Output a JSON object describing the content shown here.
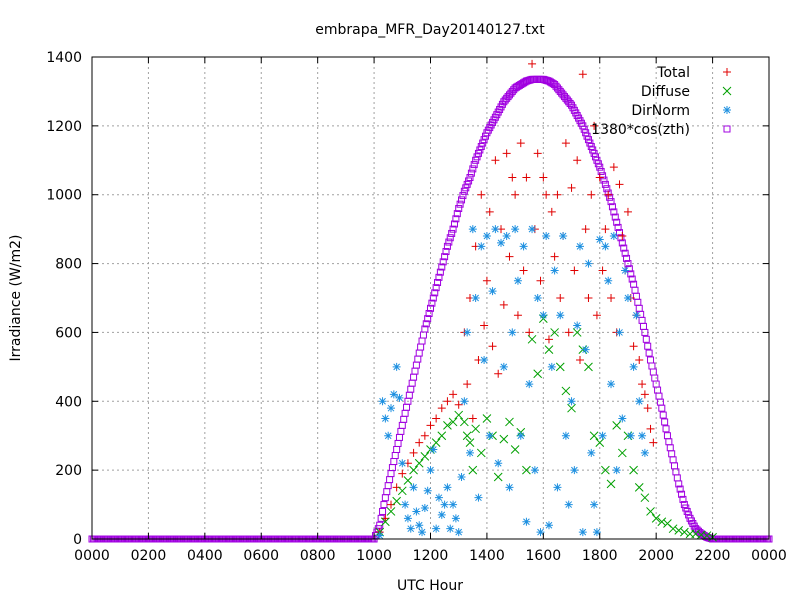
{
  "chart_data": {
    "type": "scatter",
    "title": "embrapa_MFR_Day20140127.txt",
    "xlabel": "UTC Hour",
    "ylabel": "Irradiance (W/m2)",
    "xlim": [
      0,
      24
    ],
    "ylim": [
      0,
      1400
    ],
    "x_ticks": [
      0,
      2,
      4,
      6,
      8,
      10,
      12,
      14,
      16,
      18,
      20,
      22,
      24
    ],
    "x_tick_labels": [
      "0000",
      "0200",
      "0400",
      "0600",
      "0800",
      "1000",
      "1200",
      "1400",
      "1600",
      "1800",
      "2000",
      "2200",
      "0000"
    ],
    "y_ticks": [
      0,
      200,
      400,
      600,
      800,
      1000,
      1200,
      1400
    ],
    "y_tick_labels": [
      "0",
      "200",
      "400",
      "600",
      "800",
      "1000",
      "1200",
      "1400"
    ],
    "grid": true,
    "legend_position": "top-right",
    "series": [
      {
        "name": "Total",
        "marker": "plus",
        "color": "#e00000",
        "x": [
          10.2,
          10.4,
          10.6,
          10.8,
          11.0,
          11.2,
          11.4,
          11.6,
          11.8,
          12.0,
          12.2,
          12.4,
          12.6,
          12.8,
          13.0,
          13.2,
          13.3,
          13.4,
          13.5,
          13.6,
          13.7,
          13.8,
          13.9,
          14.0,
          14.1,
          14.2,
          14.3,
          14.4,
          14.5,
          14.6,
          14.7,
          14.8,
          14.9,
          15.0,
          15.1,
          15.2,
          15.3,
          15.4,
          15.5,
          15.6,
          15.7,
          15.8,
          15.9,
          16.0,
          16.1,
          16.2,
          16.3,
          16.4,
          16.5,
          16.6,
          16.7,
          16.8,
          16.9,
          17.0,
          17.1,
          17.2,
          17.3,
          17.4,
          17.5,
          17.6,
          17.7,
          17.8,
          17.9,
          18.0,
          18.1,
          18.2,
          18.3,
          18.4,
          18.5,
          18.6,
          18.7,
          18.8,
          18.9,
          19.0,
          19.1,
          19.2,
          19.3,
          19.4,
          19.5,
          19.6,
          19.7,
          19.8,
          19.9
        ],
        "y": [
          20,
          60,
          100,
          150,
          190,
          220,
          250,
          280,
          300,
          330,
          350,
          380,
          400,
          420,
          390,
          600,
          450,
          700,
          350,
          850,
          520,
          1000,
          620,
          750,
          950,
          560,
          1100,
          480,
          900,
          680,
          1120,
          820,
          1050,
          1000,
          650,
          1150,
          780,
          1050,
          600,
          1380,
          900,
          1120,
          750,
          1050,
          1000,
          580,
          950,
          820,
          1000,
          700,
          880,
          1150,
          600,
          1020,
          780,
          1100,
          520,
          1350,
          900,
          700,
          1000,
          1200,
          650,
          1050,
          780,
          900,
          1000,
          700,
          1080,
          600,
          1030,
          880,
          780,
          950,
          700,
          560,
          650,
          520,
          450,
          420,
          380,
          320,
          280
        ]
      },
      {
        "name": "Diffuse",
        "marker": "cross",
        "color": "#00a000",
        "x": [
          10.2,
          10.4,
          10.6,
          10.8,
          11.0,
          11.2,
          11.4,
          11.6,
          11.8,
          12.0,
          12.2,
          12.4,
          12.6,
          12.8,
          13.0,
          13.2,
          13.3,
          13.4,
          13.5,
          13.6,
          13.8,
          14.0,
          14.2,
          14.4,
          14.6,
          14.8,
          15.0,
          15.2,
          15.4,
          15.6,
          15.8,
          16.0,
          16.2,
          16.4,
          16.6,
          16.8,
          17.0,
          17.2,
          17.4,
          17.6,
          17.8,
          18.0,
          18.2,
          18.4,
          18.6,
          18.8,
          19.0,
          19.2,
          19.4,
          19.6,
          19.8,
          20.0,
          20.2,
          20.4,
          20.6,
          20.8,
          21.0,
          21.2,
          21.4,
          21.6,
          21.8,
          22.0
        ],
        "y": [
          20,
          50,
          80,
          110,
          140,
          170,
          200,
          220,
          240,
          260,
          280,
          300,
          330,
          340,
          360,
          340,
          300,
          280,
          200,
          320,
          250,
          350,
          300,
          180,
          290,
          340,
          260,
          310,
          200,
          580,
          480,
          640,
          550,
          600,
          500,
          430,
          380,
          600,
          550,
          500,
          300,
          280,
          200,
          160,
          330,
          250,
          300,
          200,
          150,
          120,
          80,
          60,
          50,
          45,
          30,
          25,
          20,
          15,
          15,
          12,
          10,
          5
        ]
      },
      {
        "name": "DirNorm",
        "marker": "star",
        "color": "#1e90e0",
        "x": [
          10.2,
          10.3,
          10.4,
          10.5,
          10.6,
          10.7,
          10.8,
          10.9,
          11.0,
          11.1,
          11.2,
          11.3,
          11.4,
          11.5,
          11.6,
          11.7,
          11.8,
          11.9,
          12.0,
          12.1,
          12.2,
          12.3,
          12.4,
          12.5,
          12.6,
          12.7,
          12.8,
          12.9,
          13.0,
          13.1,
          13.2,
          13.3,
          13.4,
          13.5,
          13.6,
          13.7,
          13.8,
          13.9,
          14.0,
          14.1,
          14.2,
          14.3,
          14.4,
          14.5,
          14.6,
          14.7,
          14.8,
          14.9,
          15.0,
          15.1,
          15.2,
          15.3,
          15.4,
          15.5,
          15.6,
          15.7,
          15.8,
          15.9,
          16.0,
          16.1,
          16.2,
          16.3,
          16.4,
          16.5,
          16.6,
          16.7,
          16.8,
          16.9,
          17.0,
          17.1,
          17.2,
          17.3,
          17.4,
          17.5,
          17.6,
          17.7,
          17.8,
          17.9,
          18.0,
          18.1,
          18.2,
          18.3,
          18.4,
          18.5,
          18.6,
          18.7,
          18.8,
          18.9,
          19.0,
          19.1,
          19.2,
          19.3,
          19.4,
          19.5,
          19.6
        ],
        "y": [
          10,
          400,
          350,
          300,
          380,
          420,
          500,
          410,
          220,
          100,
          60,
          30,
          150,
          80,
          40,
          20,
          90,
          140,
          200,
          260,
          30,
          120,
          70,
          100,
          150,
          30,
          100,
          60,
          20,
          180,
          400,
          600,
          250,
          900,
          700,
          120,
          850,
          520,
          880,
          300,
          720,
          900,
          220,
          860,
          500,
          880,
          150,
          600,
          900,
          750,
          300,
          850,
          50,
          450,
          900,
          200,
          700,
          20,
          650,
          880,
          40,
          500,
          780,
          150,
          650,
          880,
          300,
          100,
          400,
          200,
          620,
          850,
          20,
          550,
          800,
          250,
          100,
          20,
          870,
          300,
          850,
          750,
          450,
          880,
          200,
          600,
          350,
          780,
          700,
          300,
          500,
          650,
          400,
          300,
          250
        ]
      },
      {
        "name": "1380*cos(zth)",
        "marker": "square",
        "color": "#a000e0",
        "x": [
          0,
          10.0,
          10.2,
          10.4,
          10.6,
          10.8,
          11.0,
          11.2,
          11.4,
          11.6,
          11.8,
          12.0,
          12.2,
          12.4,
          12.6,
          12.8,
          13.0,
          13.2,
          13.4,
          13.6,
          13.8,
          14.0,
          14.2,
          14.4,
          14.6,
          14.8,
          15.0,
          15.2,
          15.4,
          15.6,
          15.8,
          16.0,
          16.2,
          16.4,
          16.6,
          16.8,
          17.0,
          17.2,
          17.4,
          17.6,
          17.8,
          18.0,
          18.2,
          18.4,
          18.6,
          18.8,
          19.0,
          19.2,
          19.4,
          19.6,
          19.8,
          20.0,
          20.2,
          20.4,
          20.6,
          20.8,
          21.0,
          21.2,
          21.4,
          21.6,
          21.8,
          22.0,
          22.2,
          22.4,
          24
        ],
        "y": [
          0,
          0,
          40,
          120,
          190,
          260,
          330,
          400,
          470,
          540,
          610,
          670,
          730,
          790,
          850,
          900,
          960,
          1010,
          1050,
          1100,
          1140,
          1180,
          1210,
          1240,
          1270,
          1290,
          1310,
          1320,
          1330,
          1335,
          1335,
          1335,
          1330,
          1320,
          1300,
          1280,
          1260,
          1230,
          1200,
          1160,
          1120,
          1080,
          1030,
          980,
          920,
          860,
          800,
          740,
          670,
          600,
          520,
          450,
          380,
          300,
          230,
          160,
          100,
          60,
          30,
          15,
          5,
          0,
          0,
          0,
          0
        ]
      }
    ]
  }
}
